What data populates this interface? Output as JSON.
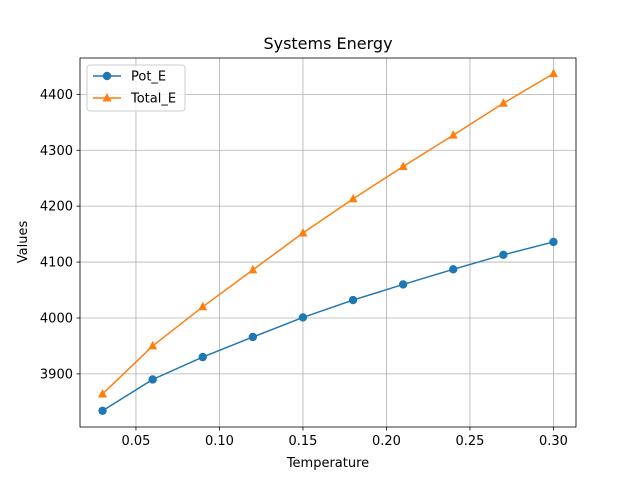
{
  "chart_data": {
    "type": "line",
    "title": "Systems Energy",
    "xlabel": "Temperature",
    "ylabel": "Values",
    "xlim": [
      0.0165,
      0.3135
    ],
    "ylim": [
      3805,
      4465
    ],
    "xticks": [
      0.05,
      0.1,
      0.15,
      0.2,
      0.25,
      0.3
    ],
    "xtick_labels": [
      "0.05",
      "0.10",
      "0.15",
      "0.20",
      "0.25",
      "0.30"
    ],
    "yticks": [
      3900,
      4000,
      4100,
      4200,
      4300,
      4400
    ],
    "ytick_labels": [
      "3900",
      "4000",
      "4100",
      "4200",
      "4300",
      "4400"
    ],
    "grid": true,
    "legend_position": "top-left",
    "x": [
      0.03,
      0.06,
      0.09,
      0.12,
      0.15,
      0.18,
      0.21,
      0.24,
      0.27,
      0.3
    ],
    "series": [
      {
        "name": "Pot_E",
        "color": "#1f77b4",
        "marker": "circle",
        "values": [
          3834,
          3890,
          3930,
          3966,
          4001,
          4032,
          4060,
          4087,
          4113,
          4136
        ]
      },
      {
        "name": "Total_E",
        "color": "#ff7f0e",
        "marker": "triangle",
        "values": [
          3864,
          3950,
          4020,
          4086,
          4152,
          4213,
          4271,
          4327,
          4384,
          4437
        ]
      }
    ]
  }
}
